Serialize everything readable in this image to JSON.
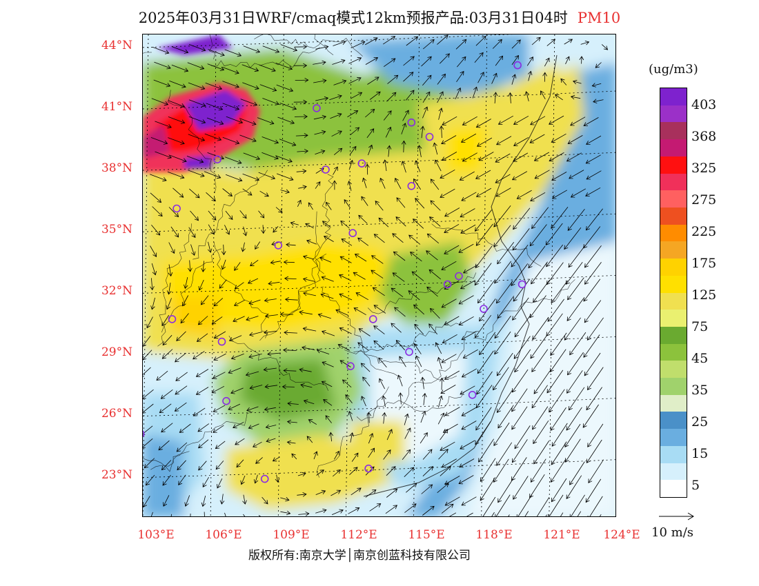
{
  "title": {
    "text": "2025年03月31日WRF/cmaq模式12km预报产品:03月31日04时",
    "pollutant": "PM10"
  },
  "map": {
    "lat_labels": [
      "44°N",
      "41°N",
      "38°N",
      "35°N",
      "32°N",
      "29°N",
      "26°N",
      "23°N"
    ],
    "lon_labels": [
      "103°E",
      "106°E",
      "109°E",
      "112°E",
      "115°E",
      "118°E",
      "121°E",
      "124°E"
    ],
    "lat_values": [
      44,
      41,
      38,
      35,
      32,
      29,
      26,
      23
    ],
    "lon_values": [
      103,
      106,
      109,
      112,
      115,
      118,
      121,
      124
    ],
    "extent": {
      "lon_min": 103,
      "lon_max": 124,
      "lat_min": 20.9,
      "lat_max": 44.5
    },
    "stations": [
      [
        119.6,
        43.0
      ],
      [
        110.7,
        40.9
      ],
      [
        114.9,
        40.2
      ],
      [
        115.7,
        39.5
      ],
      [
        106.3,
        38.4
      ],
      [
        111.1,
        37.9
      ],
      [
        112.7,
        38.2
      ],
      [
        114.9,
        37.1
      ],
      [
        104.5,
        36.0
      ],
      [
        112.3,
        34.8
      ],
      [
        109.0,
        34.2
      ],
      [
        117.0,
        32.7
      ],
      [
        116.5,
        32.3
      ],
      [
        119.8,
        32.3
      ],
      [
        104.3,
        30.6
      ],
      [
        113.2,
        30.6
      ],
      [
        118.1,
        31.1
      ],
      [
        106.5,
        29.5
      ],
      [
        114.8,
        29.0
      ],
      [
        112.2,
        28.3
      ],
      [
        106.7,
        26.6
      ],
      [
        117.6,
        26.9
      ],
      [
        102.9,
        25.0
      ],
      [
        108.4,
        22.8
      ],
      [
        113.0,
        23.3
      ]
    ],
    "colors": {
      "frame": "#000000",
      "border_lines": "#000000",
      "wind_arrows": "#000000",
      "stations": "#8a2be2"
    }
  },
  "colorbar": {
    "unit": "(ug/m3)",
    "labels": [
      "403",
      "368",
      "325",
      "275",
      "225",
      "175",
      "125",
      "75",
      "45",
      "35",
      "25",
      "15",
      "5"
    ],
    "colors": [
      "#7e22ce",
      "#9b30c8",
      "#a8305c",
      "#c41a72",
      "#ff1010",
      "#f0305a",
      "#ff6060",
      "#ee5020",
      "#ff8c00",
      "#f5a623",
      "#ffd200",
      "#ffe000",
      "#f0e050",
      "#eaf070",
      "#6aaa30",
      "#8cc23c",
      "#c0de6c",
      "#a0d26c",
      "#e0eec8",
      "#4a90c8",
      "#6aaee0",
      "#a8dcf4",
      "#d6f0fc",
      "#ffffff"
    ]
  },
  "wind_scale": {
    "label": "10 m/s"
  },
  "copyright": {
    "text": "版权所有:南京大学│南京创蓝科技有限公司"
  }
}
